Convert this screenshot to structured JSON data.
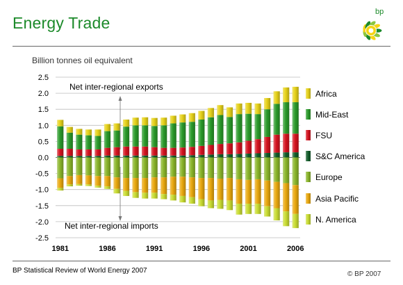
{
  "title": "Energy Trade",
  "logo_text": "bp",
  "units_label": "Billion tonnes oil equivalent",
  "footer": {
    "source": "BP Statistical Review of World Energy 2007",
    "copyright": "© BP 2007"
  },
  "colors": {
    "Africa": "#e6d21a",
    "Mid-East": "#2a9a2a",
    "FSU": "#d4121f",
    "S&C America": "#125c2a",
    "Europe": "#8ab52a",
    "Asia Pacific": "#e9a80e",
    "N. America": "#c9dc32"
  },
  "chart_data": {
    "type": "bar",
    "stacked": true,
    "title": "Energy Trade",
    "ylabel": "Billion tonnes oil equivalent",
    "ylim": [
      -2.5,
      2.5
    ],
    "yticks": [
      "2.5",
      "2.0",
      "1.5",
      "1.0",
      "0.5",
      "0.0",
      "-0.5",
      "-1.0",
      "-1.5",
      "-2.0",
      "-2.5"
    ],
    "ytick_values": [
      2.5,
      2.0,
      1.5,
      1.0,
      0.5,
      0.0,
      -0.5,
      -1.0,
      -1.5,
      -2.0,
      -2.5
    ],
    "xtick_labels": [
      "1981",
      "1986",
      "1991",
      "1996",
      "2001",
      "2006"
    ],
    "categories": [
      1981,
      1982,
      1983,
      1984,
      1985,
      1986,
      1987,
      1988,
      1989,
      1990,
      1991,
      1992,
      1993,
      1994,
      1995,
      1996,
      1997,
      1998,
      1999,
      2000,
      2001,
      2002,
      2003,
      2004,
      2005,
      2006
    ],
    "annotations": {
      "exports": "Net inter-regional exports",
      "imports": "Net inter-regional imports"
    },
    "legend_position": "right",
    "legend": [
      "Africa",
      "Mid-East",
      "FSU",
      "S&C America",
      "Europe",
      "Asia Pacific",
      "N. America"
    ],
    "positive_series": [
      {
        "name": "S&C America",
        "values": [
          0.05,
          0.05,
          0.05,
          0.05,
          0.05,
          0.06,
          0.06,
          0.06,
          0.06,
          0.06,
          0.06,
          0.06,
          0.06,
          0.06,
          0.07,
          0.08,
          0.09,
          0.1,
          0.1,
          0.11,
          0.12,
          0.13,
          0.14,
          0.15,
          0.16,
          0.16
        ]
      },
      {
        "name": "FSU",
        "values": [
          0.22,
          0.22,
          0.2,
          0.2,
          0.2,
          0.24,
          0.26,
          0.28,
          0.28,
          0.28,
          0.26,
          0.24,
          0.24,
          0.25,
          0.26,
          0.28,
          0.3,
          0.32,
          0.34,
          0.36,
          0.4,
          0.44,
          0.5,
          0.56,
          0.58,
          0.58
        ]
      },
      {
        "name": "Mid-East",
        "values": [
          0.7,
          0.5,
          0.46,
          0.44,
          0.42,
          0.52,
          0.52,
          0.62,
          0.66,
          0.66,
          0.66,
          0.7,
          0.76,
          0.78,
          0.78,
          0.82,
          0.86,
          0.9,
          0.82,
          0.88,
          0.84,
          0.78,
          0.86,
          0.96,
          0.98,
          0.98
        ]
      },
      {
        "name": "Africa",
        "values": [
          0.2,
          0.18,
          0.18,
          0.18,
          0.2,
          0.22,
          0.22,
          0.22,
          0.24,
          0.25,
          0.25,
          0.24,
          0.24,
          0.25,
          0.27,
          0.27,
          0.29,
          0.31,
          0.3,
          0.33,
          0.34,
          0.33,
          0.35,
          0.39,
          0.46,
          0.48
        ]
      }
    ],
    "negative_series": [
      {
        "name": "Europe",
        "values": [
          -0.65,
          -0.58,
          -0.55,
          -0.56,
          -0.58,
          -0.58,
          -0.62,
          -0.64,
          -0.64,
          -0.64,
          -0.62,
          -0.62,
          -0.6,
          -0.6,
          -0.62,
          -0.64,
          -0.64,
          -0.66,
          -0.64,
          -0.68,
          -0.7,
          -0.68,
          -0.72,
          -0.76,
          -0.8,
          -0.86
        ]
      },
      {
        "name": "Asia Pacific",
        "values": [
          -0.3,
          -0.26,
          -0.28,
          -0.28,
          -0.3,
          -0.32,
          -0.36,
          -0.4,
          -0.44,
          -0.46,
          -0.48,
          -0.52,
          -0.56,
          -0.6,
          -0.62,
          -0.66,
          -0.7,
          -0.66,
          -0.7,
          -0.76,
          -0.74,
          -0.76,
          -0.8,
          -0.82,
          -0.88,
          -0.9
        ]
      },
      {
        "name": "N. America",
        "values": [
          -0.08,
          -0.06,
          -0.05,
          -0.05,
          -0.06,
          -0.08,
          -0.14,
          -0.16,
          -0.18,
          -0.18,
          -0.18,
          -0.16,
          -0.18,
          -0.2,
          -0.2,
          -0.22,
          -0.24,
          -0.28,
          -0.3,
          -0.34,
          -0.32,
          -0.32,
          -0.32,
          -0.38,
          -0.46,
          -0.44
        ]
      }
    ]
  }
}
